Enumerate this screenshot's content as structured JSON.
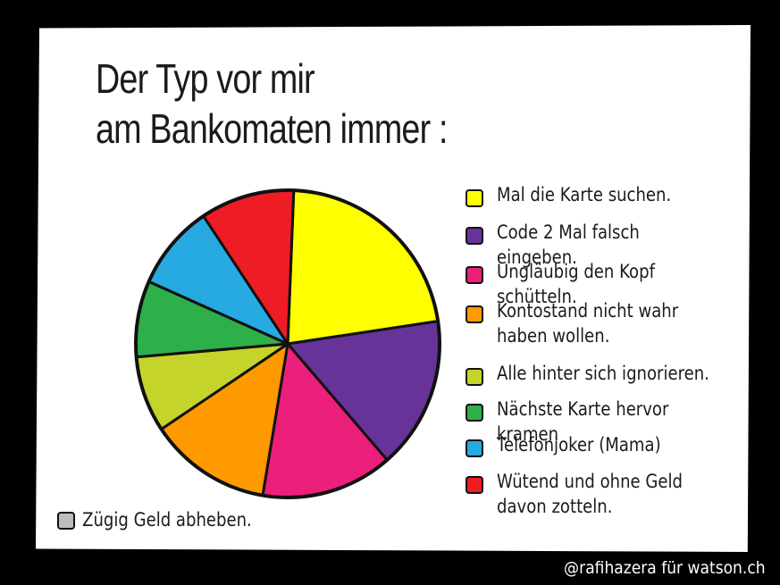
{
  "title": {
    "line1": "Der Typ vor mir",
    "line2": "am Bankomaten immer :"
  },
  "chart_data": {
    "type": "pie",
    "title": "Der Typ vor mir am Bankomaten immer :",
    "legend_position": "right",
    "slices": [
      {
        "label": "Mal die Karte suchen.",
        "value": 22,
        "color": "#FFFF00"
      },
      {
        "label": "Code 2 Mal falsch eingeben.",
        "value": 16,
        "color": "#663399"
      },
      {
        "label": "Ungläubig den Kopf schütteln.",
        "value": 14,
        "color": "#EC1F7A"
      },
      {
        "label": "Kontostand nicht wahr\nhaben wollen.",
        "value": 13,
        "color": "#FF9900"
      },
      {
        "label": "Alle hinter sich ignorieren.",
        "value": 8,
        "color": "#C5D42A"
      },
      {
        "label": "Nächste Karte hervor kramen",
        "value": 8,
        "color": "#2DAF4A"
      },
      {
        "label": "Telefonjoker (Mama)",
        "value": 9,
        "color": "#27A9E1"
      },
      {
        "label": "Wütend und ohne Geld\ndavon zotteln.",
        "value": 10,
        "color": "#EE1C25"
      },
      {
        "label": "Zügig Geld abheben.",
        "value": 0,
        "color": "#BDBDBD"
      }
    ]
  },
  "credit": "@rafihazera für watson.ch"
}
